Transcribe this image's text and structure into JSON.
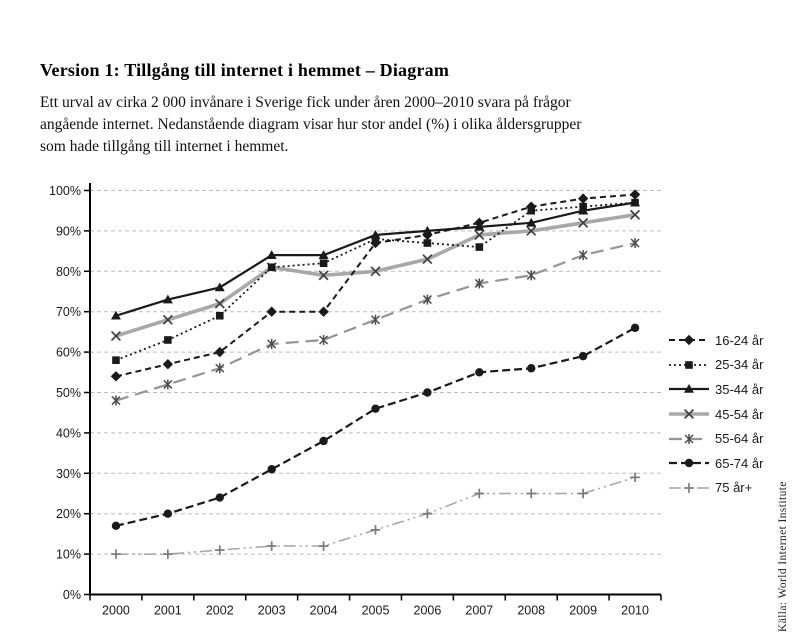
{
  "page": {
    "title": "Version 1: Tillgång till internet i hemmet – Diagram",
    "intro_lines": [
      "Ett urval av cirka 2 000 invånare i Sverige fick under åren 2000–2010 svara på frågor",
      "angående internet. Nedanstående diagram visar hur stor andel (%) i olika åldersgrupper",
      "som hade tillgång till internet i hemmet."
    ],
    "source_note": "Källa: World Internet Institute"
  },
  "chart_data": {
    "type": "line",
    "x": [
      2000,
      2001,
      2002,
      2003,
      2004,
      2005,
      2006,
      2007,
      2008,
      2009,
      2010
    ],
    "series": [
      {
        "name": "16-24 år",
        "marker": "diamond",
        "line_style": "dashed",
        "color": "#1a1a1a",
        "marker_color": "#1a1a1a",
        "values": [
          54,
          57,
          60,
          70,
          70,
          87,
          89,
          92,
          96,
          98,
          99
        ]
      },
      {
        "name": "25-34 år",
        "marker": "square",
        "line_style": "dotted",
        "color": "#1a1a1a",
        "marker_color": "#1a1a1a",
        "values": [
          58,
          63,
          69,
          81,
          82,
          88,
          87,
          86,
          95,
          96,
          97
        ]
      },
      {
        "name": "35-44 år",
        "marker": "triangle",
        "line_style": "solid",
        "color": "#1a1a1a",
        "marker_color": "#1a1a1a",
        "values": [
          69,
          73,
          76,
          84,
          84,
          89,
          90,
          91,
          92,
          95,
          97
        ]
      },
      {
        "name": "45-54 år",
        "marker": "x",
        "line_style": "solid-thick",
        "color": "#a8a8a8",
        "marker_color": "#3f3f3f",
        "values": [
          64,
          68,
          72,
          81,
          79,
          80,
          83,
          89,
          90,
          92,
          94
        ]
      },
      {
        "name": "55-64 år",
        "marker": "asterisk",
        "line_style": "long-dash",
        "color": "#959595",
        "marker_color": "#4a4a4a",
        "values": [
          48,
          52,
          56,
          62,
          63,
          68,
          73,
          77,
          79,
          84,
          87
        ]
      },
      {
        "name": "65-74 år",
        "marker": "circle",
        "line_style": "med-dash",
        "color": "#1a1a1a",
        "marker_color": "#1a1a1a",
        "values": [
          17,
          20,
          24,
          31,
          38,
          46,
          50,
          55,
          56,
          59,
          66
        ]
      },
      {
        "name": "75 år+",
        "marker": "plus",
        "line_style": "dash-dot-dot",
        "color": "#a3a3a3",
        "marker_color": "#7a7a7a",
        "values": [
          10,
          10,
          11,
          12,
          12,
          16,
          20,
          25,
          25,
          25,
          29
        ]
      }
    ],
    "ylim": [
      0,
      100
    ],
    "ytick_step": 10,
    "ytick_format": "percent",
    "grid": "horizontal-dashed",
    "gridline_color": "#bdbdbd",
    "axis_color": "#000000",
    "legend_position": "right"
  }
}
